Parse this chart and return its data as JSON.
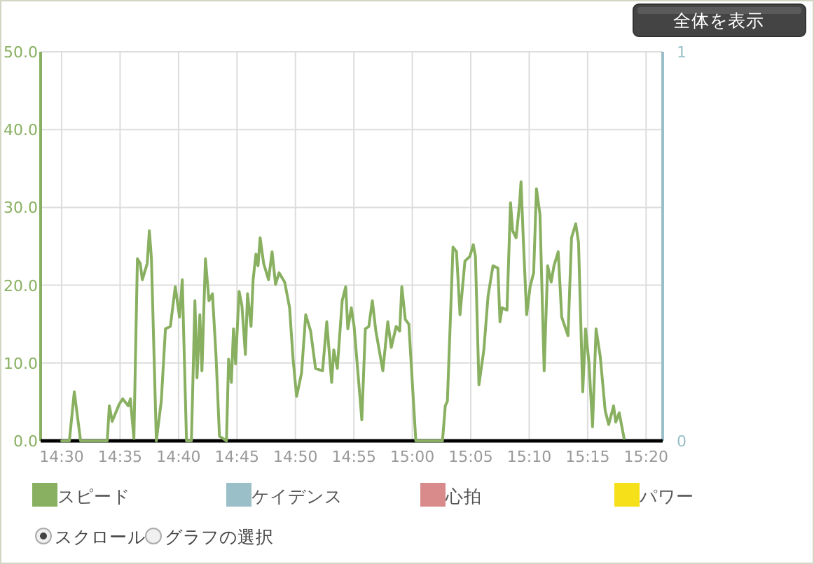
{
  "chart_data": {
    "type": "line",
    "x": [
      14.5,
      14.511,
      14.518,
      14.527,
      14.565,
      14.568,
      14.572,
      14.582,
      14.587,
      14.595,
      14.598,
      14.603,
      14.608,
      14.612,
      14.615,
      14.622,
      14.625,
      14.628,
      14.635,
      14.642,
      14.648,
      14.655,
      14.662,
      14.668,
      14.672,
      14.678,
      14.685,
      14.69,
      14.693,
      14.697,
      14.7,
      14.705,
      14.71,
      14.715,
      14.72,
      14.725,
      14.735,
      14.738,
      14.742,
      14.745,
      14.748,
      14.753,
      14.757,
      14.762,
      14.765,
      14.77,
      14.773,
      14.777,
      14.78,
      14.783,
      14.788,
      14.795,
      14.8,
      14.805,
      14.81,
      14.818,
      14.825,
      14.83,
      14.835,
      14.842,
      14.848,
      14.855,
      14.862,
      14.872,
      14.878,
      14.885,
      14.888,
      14.893,
      14.9,
      14.905,
      14.908,
      14.913,
      14.917,
      14.928,
      14.933,
      14.938,
      14.943,
      14.948,
      14.958,
      14.965,
      14.97,
      14.977,
      14.982,
      14.985,
      14.99,
      14.995,
      15.005,
      15.043,
      15.047,
      15.05,
      15.058,
      15.063,
      15.068,
      15.075,
      15.082,
      15.087,
      15.09,
      15.095,
      15.102,
      15.108,
      15.115,
      15.122,
      15.125,
      15.128,
      15.135,
      15.14,
      15.143,
      15.148,
      15.153,
      15.155,
      15.158,
      15.163,
      15.168,
      15.173,
      15.177,
      15.182,
      15.188,
      15.193,
      15.198,
      15.202,
      15.208,
      15.213,
      15.222,
      15.227,
      15.233,
      15.237,
      15.243,
      15.247,
      15.252,
      15.257,
      15.262,
      15.268,
      15.275,
      15.28,
      15.287,
      15.29,
      15.295,
      15.302
    ],
    "series": [
      {
        "name": "スピード",
        "color": "#88b060",
        "values": [
          0,
          0,
          6.3,
          0,
          0,
          4.5,
          2.5,
          4.7,
          5.4,
          4.5,
          5.4,
          0.3,
          23.4,
          22.8,
          20.7,
          22.8,
          27.0,
          23.4,
          0,
          5.1,
          14.4,
          14.7,
          19.8,
          15.9,
          20.7,
          0,
          0,
          18.0,
          8.1,
          16.2,
          9.0,
          23.4,
          18.0,
          18.9,
          11.1,
          0.6,
          0,
          10.5,
          7.5,
          14.4,
          9.9,
          19.2,
          17.4,
          11.1,
          18.9,
          14.7,
          20.7,
          24.0,
          22.5,
          26.1,
          22.8,
          20.7,
          24.3,
          20.1,
          21.6,
          20.4,
          17.1,
          10.5,
          5.7,
          8.7,
          16.2,
          14.1,
          9.3,
          9.0,
          15.3,
          7.5,
          11.7,
          9.3,
          18.0,
          19.8,
          14.4,
          17.1,
          14.7,
          2.7,
          14.4,
          14.7,
          18.0,
          14.1,
          9.0,
          15.3,
          12.0,
          14.7,
          14.1,
          19.8,
          15.6,
          15.0,
          0,
          0,
          4.5,
          5.1,
          24.9,
          24.3,
          16.2,
          23.1,
          23.7,
          25.2,
          23.7,
          7.2,
          11.7,
          18.6,
          22.5,
          22.2,
          15.3,
          17.1,
          16.8,
          30.6,
          27.0,
          26.1,
          30.6,
          33.3,
          26.4,
          16.2,
          19.8,
          21.6,
          32.4,
          29.1,
          9.0,
          22.5,
          20.4,
          22.5,
          24.3,
          15.9,
          13.5,
          26.1,
          27.9,
          25.5,
          6.3,
          14.4,
          9.9,
          1.8,
          14.4,
          10.8,
          3.9,
          2.1,
          4.5,
          2.4,
          3.6,
          0.3
        ]
      },
      {
        "name": "ケイデンス",
        "color": "#9bbfc8",
        "axis": "y2",
        "values": [
          null,
          null,
          null,
          null,
          null,
          null,
          null,
          null,
          null,
          null,
          null,
          null,
          null,
          null,
          null,
          null,
          null,
          null,
          null,
          null,
          null,
          null,
          null,
          null,
          null,
          null,
          null,
          null,
          null,
          null,
          null,
          null,
          null,
          null,
          null,
          null,
          null,
          null,
          null,
          null,
          null,
          null,
          null,
          null,
          null,
          null,
          null,
          null,
          null,
          null,
          null,
          null,
          null,
          null,
          null,
          null,
          null,
          null,
          null,
          null,
          null,
          null,
          null,
          null,
          null,
          null,
          null,
          null,
          null,
          null,
          null,
          null,
          null,
          null,
          null,
          null,
          null,
          null,
          null,
          null,
          null,
          null,
          null,
          null,
          null,
          null,
          null,
          null,
          null,
          null,
          null,
          null,
          null,
          null,
          null,
          null,
          null,
          null,
          null,
          null,
          null,
          null,
          null,
          null,
          null,
          null,
          null,
          null,
          null,
          null,
          null,
          null,
          null,
          null,
          null,
          null,
          null,
          null,
          null,
          null,
          null,
          null,
          null,
          null,
          null,
          null,
          null,
          null,
          null,
          null,
          null,
          null,
          null,
          null,
          null,
          null,
          null,
          null
        ]
      },
      {
        "name": "心拍",
        "color": "#d98b8b",
        "values": [
          null,
          null,
          null,
          null,
          null,
          null,
          null,
          null,
          null,
          null,
          null,
          null,
          null,
          null,
          null,
          null,
          null,
          null,
          null,
          null,
          null,
          null,
          null,
          null,
          null,
          null,
          null,
          null,
          null,
          null,
          null,
          null,
          null,
          null,
          null,
          null,
          null,
          null,
          null,
          null,
          null,
          null,
          null,
          null,
          null,
          null,
          null,
          null,
          null,
          null,
          null,
          null,
          null,
          null,
          null,
          null,
          null,
          null,
          null,
          null,
          null,
          null,
          null,
          null,
          null,
          null,
          null,
          null,
          null,
          null,
          null,
          null,
          null,
          null,
          null,
          null,
          null,
          null,
          null,
          null,
          null,
          null,
          null,
          null,
          null,
          null,
          null,
          null,
          null,
          null,
          null,
          null,
          null,
          null,
          null,
          null,
          null,
          null,
          null,
          null,
          null,
          null,
          null,
          null,
          null,
          null,
          null,
          null,
          null,
          null,
          null,
          null,
          null,
          null,
          null,
          null,
          null,
          null,
          null,
          null,
          null,
          null,
          null,
          null,
          null,
          null,
          null,
          null,
          null,
          null,
          null,
          null,
          null,
          null,
          null,
          null,
          null,
          null
        ]
      },
      {
        "name": "パワー",
        "color": "#f5e01a",
        "values": [
          null,
          null,
          null,
          null,
          null,
          null,
          null,
          null,
          null,
          null,
          null,
          null,
          null,
          null,
          null,
          null,
          null,
          null,
          null,
          null,
          null,
          null,
          null,
          null,
          null,
          null,
          null,
          null,
          null,
          null,
          null,
          null,
          null,
          null,
          null,
          null,
          null,
          null,
          null,
          null,
          null,
          null,
          null,
          null,
          null,
          null,
          null,
          null,
          null,
          null,
          null,
          null,
          null,
          null,
          null,
          null,
          null,
          null,
          null,
          null,
          null,
          null,
          null,
          null,
          null,
          null,
          null,
          null,
          null,
          null,
          null,
          null,
          null,
          null,
          null,
          null,
          null,
          null,
          null,
          null,
          null,
          null,
          null,
          null,
          null,
          null,
          null,
          null,
          null,
          null,
          null,
          null,
          null,
          null,
          null,
          null,
          null,
          null,
          null,
          null,
          null,
          null,
          null,
          null,
          null,
          null,
          null,
          null,
          null,
          null,
          null,
          null,
          null,
          null,
          null,
          null,
          null,
          null,
          null,
          null,
          null,
          null,
          null,
          null,
          null,
          null,
          null,
          null,
          null,
          null,
          null,
          null,
          null,
          null,
          null,
          null,
          null,
          null
        ]
      }
    ],
    "xlim": [
      14.47,
      15.357
    ],
    "xticks": [
      {
        "value": 14.5,
        "label": "14:30"
      },
      {
        "value": 14.5833,
        "label": "14:35"
      },
      {
        "value": 14.6667,
        "label": "14:40"
      },
      {
        "value": 14.75,
        "label": "14:45"
      },
      {
        "value": 14.8333,
        "label": "14:50"
      },
      {
        "value": 14.9167,
        "label": "14:55"
      },
      {
        "value": 15,
        "label": "15:00"
      },
      {
        "value": 15.0833,
        "label": "15:05"
      },
      {
        "value": 15.1667,
        "label": "15:10"
      },
      {
        "value": 15.25,
        "label": "15:15"
      },
      {
        "value": 15.3333,
        "label": "15:20"
      }
    ],
    "ylim": [
      0,
      50
    ],
    "yticks": [
      {
        "value": 0,
        "label": "0.0"
      },
      {
        "value": 10,
        "label": "10.0"
      },
      {
        "value": 20,
        "label": "20.0"
      },
      {
        "value": 30,
        "label": "30.0"
      },
      {
        "value": 40,
        "label": "40.0"
      },
      {
        "value": 50,
        "label": "50.0"
      }
    ],
    "y2lim": [
      0,
      1
    ],
    "y2ticks": [
      0,
      1
    ],
    "grid": true,
    "legend": "bottom",
    "marker": "none",
    "line_style": "solid",
    "annotations": [
      "全体を表示",
      "スクロール",
      "グラフの選択"
    ]
  }
}
